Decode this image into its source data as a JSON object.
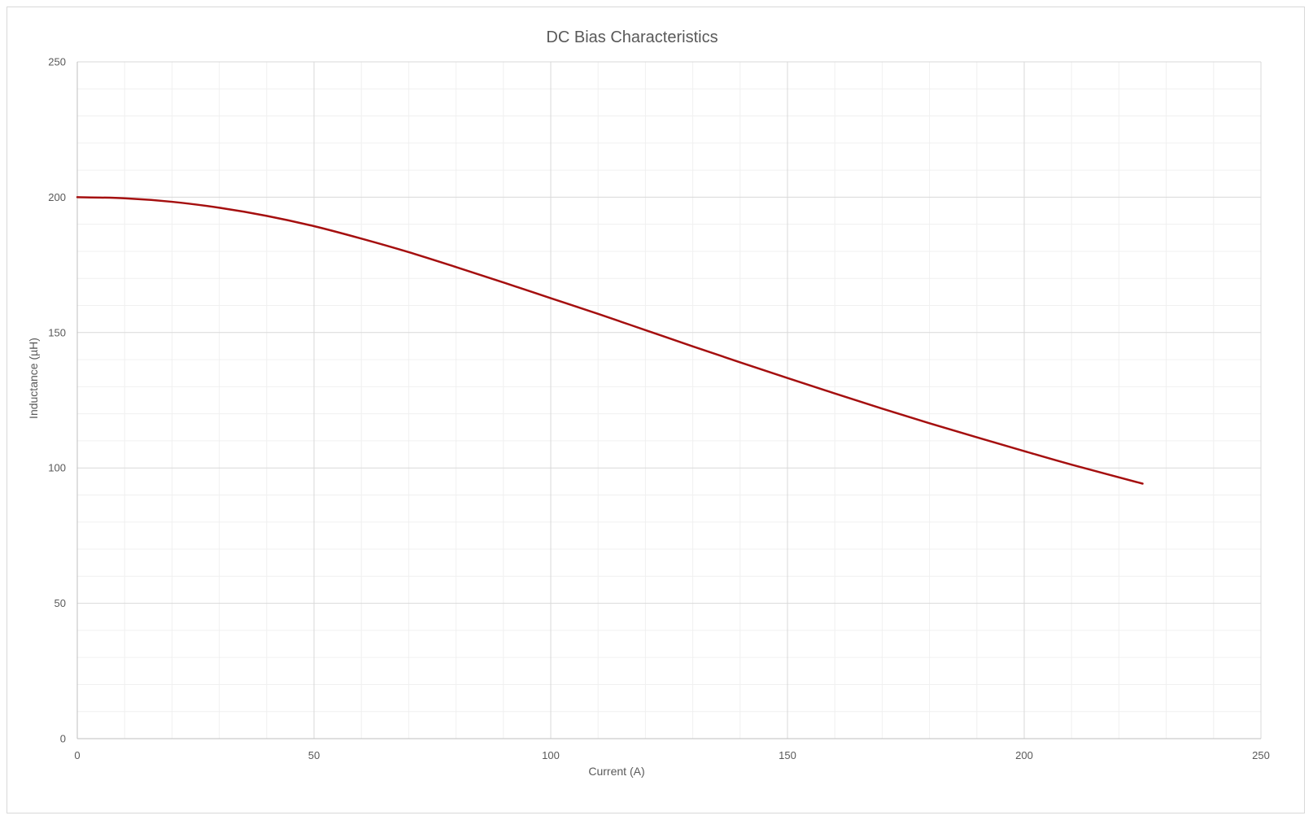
{
  "chart_data": {
    "type": "line",
    "title": "DC Bias Characteristics",
    "xlabel": "Current (A)",
    "ylabel": "Inductance (µH)",
    "xlim": [
      0,
      250
    ],
    "ylim": [
      0,
      250
    ],
    "x_ticks": [
      0,
      50,
      100,
      150,
      200,
      250
    ],
    "y_ticks": [
      0,
      50,
      100,
      150,
      200,
      250
    ],
    "x_tick_labels": [
      "0",
      "50",
      "100",
      "150",
      "200",
      "250"
    ],
    "y_tick_labels": [
      "0",
      "50",
      "100",
      "150",
      "200",
      "250"
    ],
    "x_minor_step": 10,
    "y_minor_step": 10,
    "grid": true,
    "legend": "none",
    "series": [
      {
        "color": "#a50f0f",
        "x": [
          0,
          10,
          20,
          30,
          40,
          50,
          60,
          70,
          80,
          90,
          100,
          110,
          120,
          130,
          140,
          150,
          160,
          170,
          180,
          190,
          200,
          210,
          225
        ],
        "y": [
          200,
          199.6,
          198.3,
          196.1,
          193.1,
          189.3,
          184.7,
          179.7,
          174.2,
          168.5,
          162.7,
          156.9,
          150.9,
          144.9,
          139.0,
          133.2,
          127.5,
          121.9,
          116.5,
          111.3,
          106.2,
          101.2,
          94.2
        ]
      }
    ]
  }
}
